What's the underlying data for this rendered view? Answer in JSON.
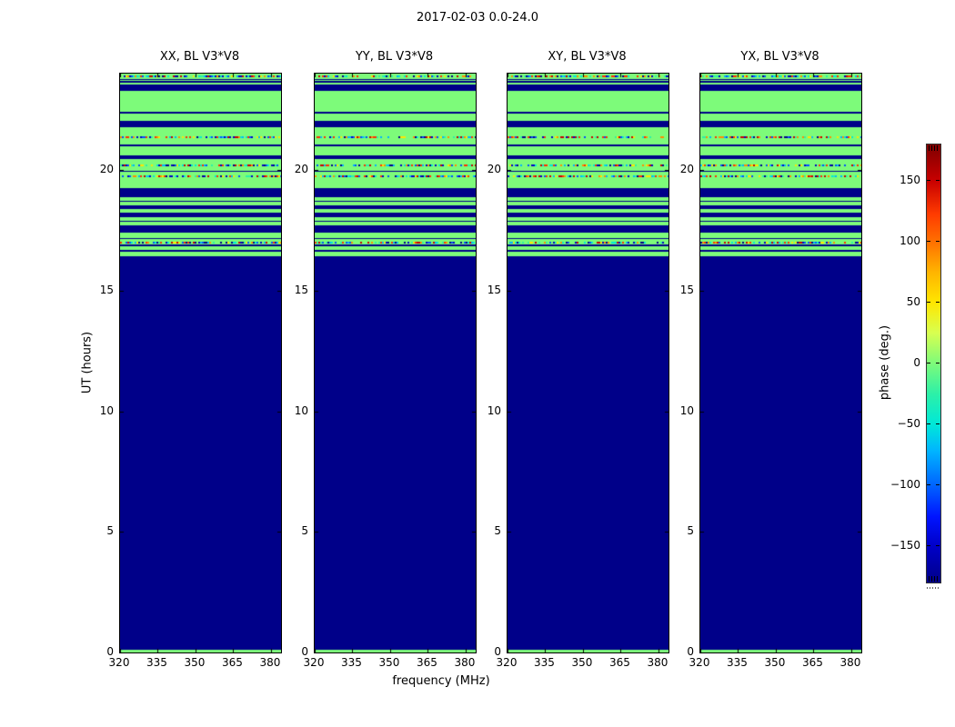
{
  "figure": {
    "title": "2017-02-03 0.0-24.0",
    "xlabel": "frequency (MHz)",
    "ylabel": "UT (hours)",
    "colorbar_label": "phase (deg.)"
  },
  "chart_data": {
    "type": "heatmap",
    "title": "2017-02-03 0.0-24.0",
    "panels": [
      {
        "title": "XX, BL V3*V8"
      },
      {
        "title": "YY, BL V3*V8"
      },
      {
        "title": "XY, BL V3*V8"
      },
      {
        "title": "YX, BL V3*V8"
      }
    ],
    "x_axis": {
      "label": "frequency (MHz)",
      "ticks": [
        320,
        335,
        350,
        365,
        380
      ],
      "range": [
        320,
        384
      ]
    },
    "y_axis": {
      "label": "UT (hours)",
      "ticks": [
        0,
        5,
        10,
        15,
        20
      ],
      "range": [
        0,
        24
      ]
    },
    "colorbar": {
      "label": "phase (deg.)",
      "ticks": [
        150,
        100,
        50,
        0,
        -50,
        -100,
        -150
      ],
      "range": [
        -180,
        180
      ],
      "gradient_stops": [
        [
          "0%",
          "#7f0000"
        ],
        [
          "8.3%",
          "#c80000"
        ],
        [
          "16%",
          "#ff3c00"
        ],
        [
          "22.2%",
          "#ff7000"
        ],
        [
          "29%",
          "#ffb300"
        ],
        [
          "36.1%",
          "#ffe600"
        ],
        [
          "43%",
          "#d8ff50"
        ],
        [
          "50%",
          "#7dfb7a"
        ],
        [
          "57%",
          "#2cf0a8"
        ],
        [
          "63.9%",
          "#00e8d8"
        ],
        [
          "70%",
          "#00b4ff"
        ],
        [
          "77.8%",
          "#0064ff"
        ],
        [
          "85%",
          "#0014ff"
        ],
        [
          "91.7%",
          "#0000c8"
        ],
        [
          "100%",
          "#000089"
        ]
      ]
    },
    "colors": {
      "navy": "#000089",
      "green": "#7dfb7a",
      "noise_palette": [
        "#0000c8",
        "#0050ff",
        "#00b4ff",
        "#00e8d8",
        "#2cf0a8",
        "#ffe600",
        "#ff8c00",
        "#ff3000",
        "#c80000",
        "#7dfb7a",
        "#000089"
      ]
    },
    "rows_hours_bottom_up": [
      [
        0.0,
        0.12,
        "g"
      ],
      [
        0.12,
        16.45,
        "n"
      ],
      [
        16.45,
        16.62,
        "g"
      ],
      [
        16.62,
        16.7,
        "n"
      ],
      [
        16.7,
        16.85,
        "g"
      ],
      [
        16.85,
        16.93,
        "n"
      ],
      [
        16.93,
        17.03,
        "x"
      ],
      [
        17.03,
        17.15,
        "g"
      ],
      [
        17.15,
        17.19,
        "n"
      ],
      [
        17.19,
        17.42,
        "g"
      ],
      [
        17.42,
        17.72,
        "n"
      ],
      [
        17.72,
        17.87,
        "g"
      ],
      [
        17.87,
        17.91,
        "n"
      ],
      [
        17.91,
        18.06,
        "g"
      ],
      [
        18.06,
        18.25,
        "n"
      ],
      [
        18.25,
        18.4,
        "g"
      ],
      [
        18.4,
        18.55,
        "n"
      ],
      [
        18.55,
        18.7,
        "g"
      ],
      [
        18.7,
        18.74,
        "n"
      ],
      [
        18.74,
        18.89,
        "g"
      ],
      [
        18.89,
        19.24,
        "n"
      ],
      [
        19.24,
        19.65,
        "g"
      ],
      [
        19.65,
        19.77,
        "x"
      ],
      [
        19.77,
        19.93,
        "g"
      ],
      [
        19.93,
        19.97,
        "n"
      ],
      [
        19.97,
        20.13,
        "g"
      ],
      [
        20.13,
        20.28,
        "x"
      ],
      [
        20.28,
        20.45,
        "g"
      ],
      [
        20.45,
        20.6,
        "n"
      ],
      [
        20.6,
        20.78,
        "g"
      ],
      [
        20.78,
        20.82,
        "n"
      ],
      [
        20.82,
        21.0,
        "g"
      ],
      [
        21.0,
        21.04,
        "n"
      ],
      [
        21.04,
        21.28,
        "g"
      ],
      [
        21.28,
        21.42,
        "x"
      ],
      [
        21.42,
        21.78,
        "g"
      ],
      [
        21.78,
        22.04,
        "n"
      ],
      [
        22.04,
        22.34,
        "g"
      ],
      [
        22.34,
        22.42,
        "n"
      ],
      [
        22.42,
        23.3,
        "g"
      ],
      [
        23.3,
        23.56,
        "n"
      ],
      [
        23.56,
        23.64,
        "g"
      ],
      [
        23.64,
        23.68,
        "n"
      ],
      [
        23.68,
        23.72,
        "g"
      ],
      [
        23.72,
        23.76,
        "n"
      ],
      [
        23.76,
        23.8,
        "g"
      ],
      [
        23.8,
        23.92,
        "x"
      ],
      [
        23.92,
        24.0,
        "g"
      ]
    ]
  }
}
